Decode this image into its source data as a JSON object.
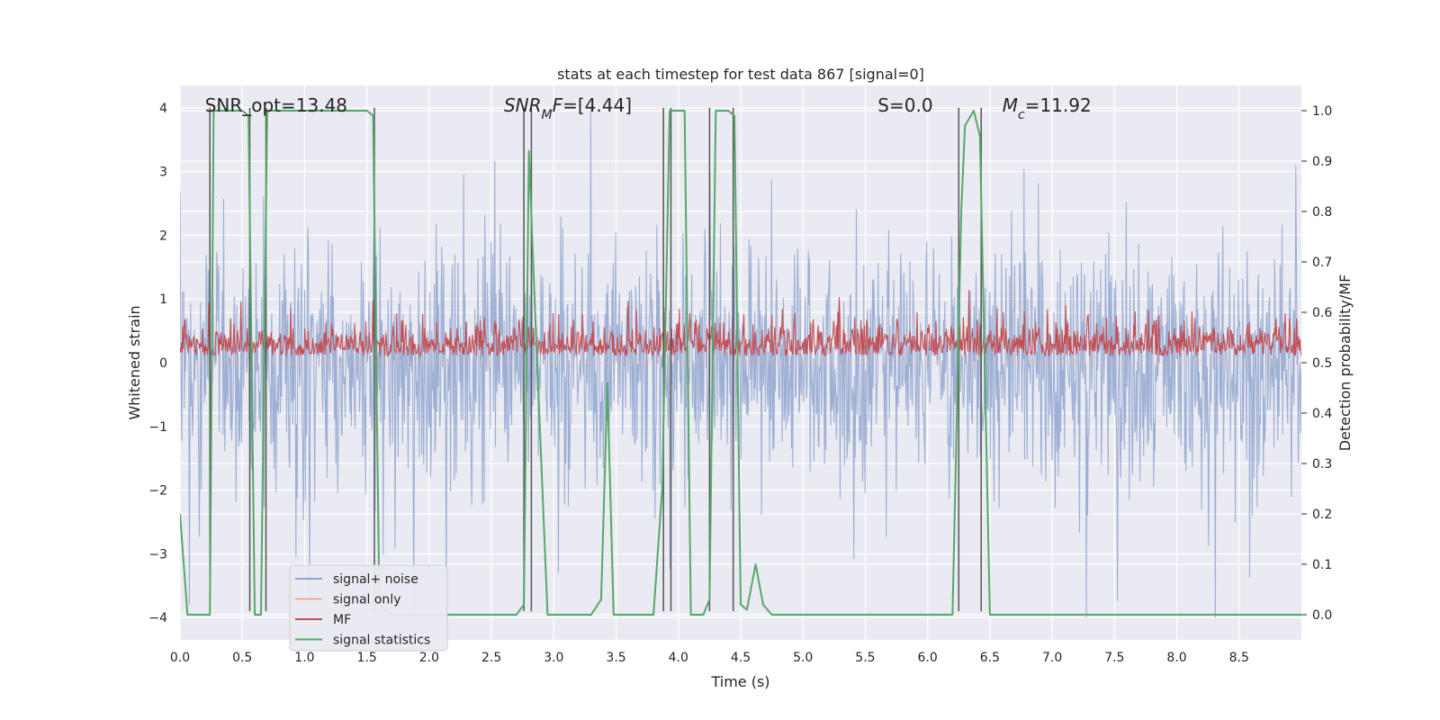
{
  "chart_data": {
    "type": "line",
    "title": "stats at each timestep for test data 867 [signal=0]",
    "xlabel": "Time (s)",
    "ylabel": "Whitened strain",
    "y2label": "Detection probability/MF",
    "xlim": [
      0.0,
      9.0
    ],
    "ylim": [
      -4.35,
      4.35
    ],
    "y2lim": [
      -0.05,
      1.05
    ],
    "grid": true,
    "legend_position": "lower-left",
    "xticks": [
      0.0,
      0.5,
      1.0,
      1.5,
      2.0,
      2.5,
      3.0,
      3.5,
      4.0,
      4.5,
      5.0,
      5.5,
      6.0,
      6.5,
      7.0,
      7.5,
      8.0,
      8.5
    ],
    "xtick_labels": [
      "0.0",
      "0.5",
      "1.0",
      "1.5",
      "2.0",
      "2.5",
      "3.0",
      "3.5",
      "4.0",
      "4.5",
      "5.0",
      "5.5",
      "6.0",
      "6.5",
      "7.0",
      "7.5",
      "8.0",
      "8.5"
    ],
    "yticks": [
      -4,
      -3,
      -2,
      -1,
      0,
      1,
      2,
      3,
      4
    ],
    "ytick_labels": [
      "−4",
      "−3",
      "−2",
      "−1",
      "0",
      "1",
      "2",
      "3",
      "4"
    ],
    "y2ticks": [
      0.0,
      0.1,
      0.2,
      0.3,
      0.4,
      0.5,
      0.6,
      0.7,
      0.8,
      0.9,
      1.0
    ],
    "y2tick_labels": [
      "0.0",
      "0.1",
      "0.2",
      "0.3",
      "0.4",
      "0.5",
      "0.6",
      "0.7",
      "0.8",
      "0.9",
      "1.0"
    ],
    "annotations": [
      {
        "name": "snr-opt",
        "text": "SNR_opt=13.48",
        "x": 0.2
      },
      {
        "name": "snr-mf",
        "text": "SNR_MF=[4.44]",
        "x": 2.6
      },
      {
        "name": "s-value",
        "text": "S=0.0",
        "x": 5.6
      },
      {
        "name": "mc-value",
        "text": "M_c=11.92",
        "x": 6.6
      }
    ],
    "series": [
      {
        "name": "signal+ noise",
        "color": "#8fa5cf",
        "axis": "left",
        "kind": "noise",
        "amplitude": 0.55,
        "peak": 4.0
      },
      {
        "name": "signal only",
        "color": "#f2a98c",
        "axis": "left",
        "kind": "flat",
        "value": 0.0
      },
      {
        "name": "MF",
        "color": "#c44e52",
        "axis": "right",
        "kind": "noise",
        "mean": 0.525,
        "spread": 0.03
      },
      {
        "name": "signal statistics",
        "color": "#55a868",
        "axis": "right",
        "kind": "line",
        "x": [
          0.0,
          0.06,
          0.15,
          0.24,
          0.27,
          0.3,
          0.35,
          0.5,
          0.55,
          0.6,
          0.65,
          0.7,
          0.75,
          0.8,
          1.5,
          1.55,
          1.6,
          1.7,
          2.0,
          2.7,
          2.76,
          2.8,
          2.85,
          2.95,
          3.3,
          3.38,
          3.43,
          3.48,
          3.55,
          3.8,
          3.87,
          3.93,
          4.05,
          4.1,
          4.2,
          4.25,
          4.3,
          4.4,
          4.45,
          4.5,
          4.55,
          4.62,
          4.68,
          4.75,
          6.2,
          6.27,
          6.3,
          6.37,
          6.42,
          6.5,
          6.55,
          9.0
        ],
        "values": [
          0.2,
          0.0,
          0.0,
          0.0,
          1.0,
          1.0,
          1.0,
          1.0,
          0.99,
          0.0,
          0.0,
          1.0,
          1.0,
          1.0,
          1.0,
          0.99,
          0.02,
          0.0,
          0.0,
          0.0,
          0.02,
          0.92,
          0.6,
          0.0,
          0.0,
          0.03,
          0.46,
          0.0,
          0.0,
          0.0,
          0.25,
          1.0,
          1.0,
          0.0,
          0.0,
          0.03,
          1.0,
          1.0,
          0.99,
          0.02,
          0.01,
          0.1,
          0.02,
          0.0,
          0.0,
          0.8,
          0.97,
          1.0,
          0.95,
          0.0,
          0.0,
          0.0
        ]
      }
    ],
    "vertical_markers": [
      0.24,
      0.56,
      0.69,
      1.56,
      2.76,
      2.82,
      3.88,
      3.94,
      4.25,
      4.44,
      6.25,
      6.43
    ]
  }
}
